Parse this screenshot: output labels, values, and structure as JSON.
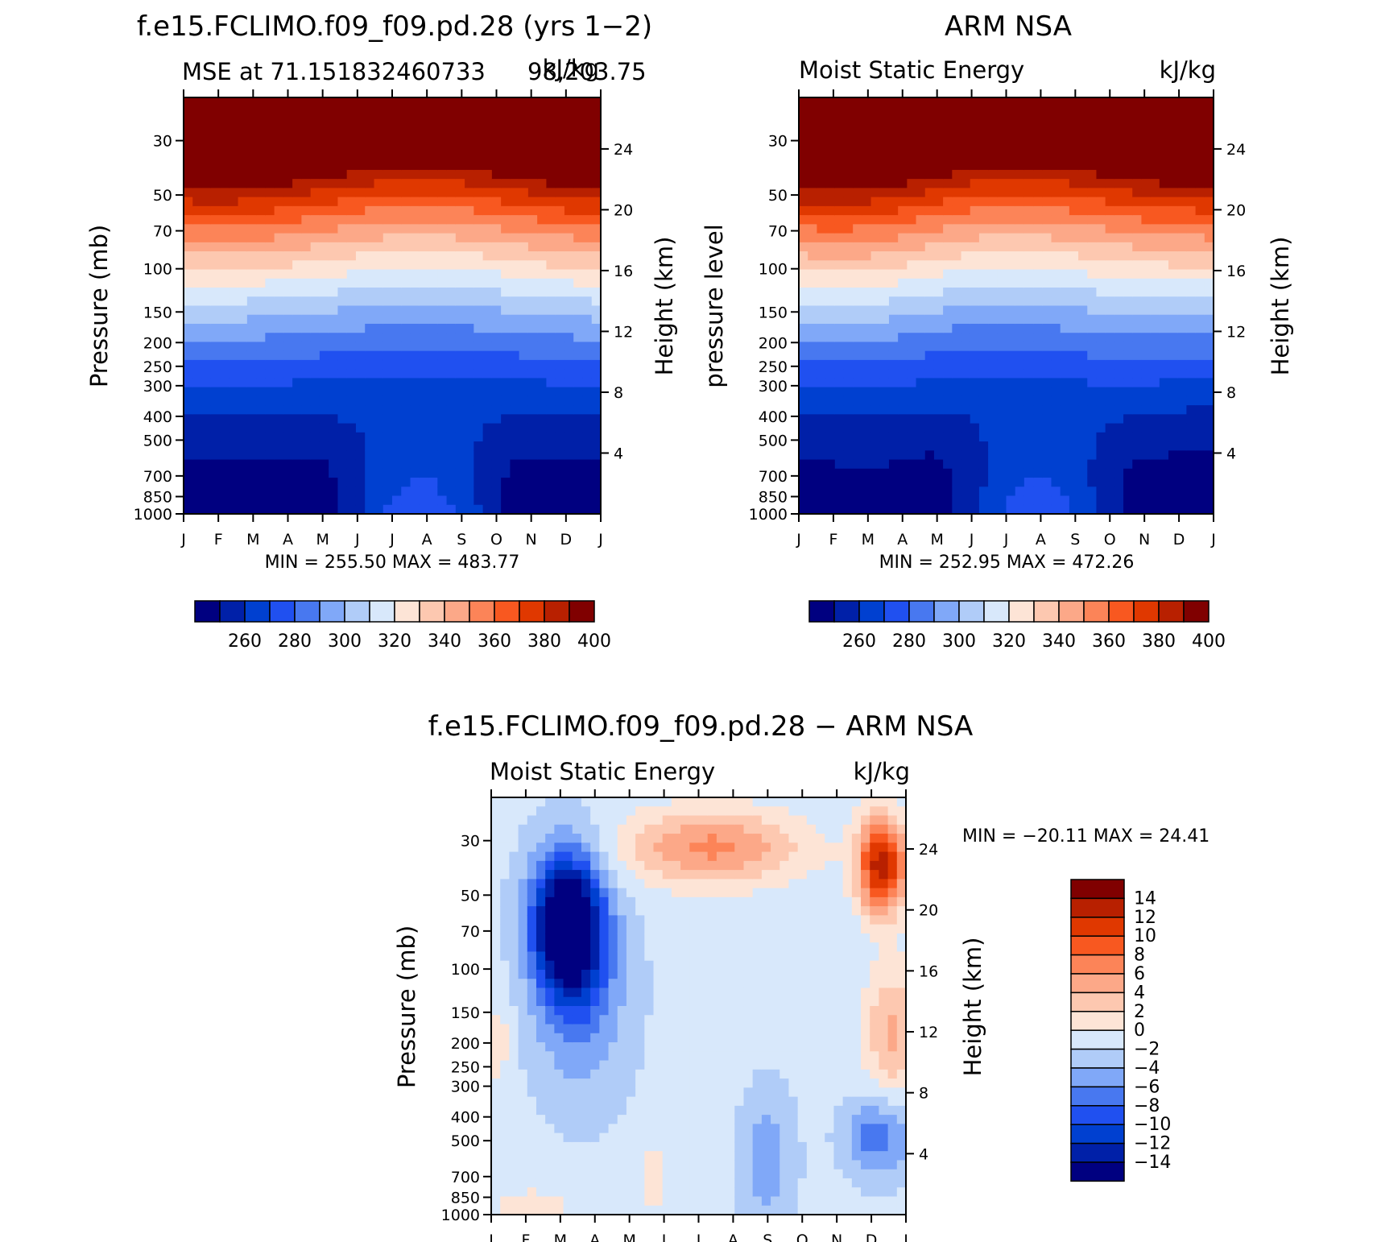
{
  "chart_data": [
    {
      "type": "contour",
      "title": "f.e15.FCLIMO.f09_f09.pd.28 (yrs 1−2)",
      "subtitle_left": "MSE at 71.151832460733",
      "subtitle_right": "98,203.75",
      "subtitle_units": "kJ/kg",
      "ylabel": "Pressure (mb)",
      "ylabel_right": "Height (km)",
      "x_ticks": [
        "J",
        "F",
        "M",
        "A",
        "M",
        "J",
        "J",
        "A",
        "S",
        "O",
        "N",
        "D",
        "J"
      ],
      "y_ticks": [
        30,
        50,
        70,
        100,
        150,
        200,
        250,
        300,
        400,
        500,
        700,
        850,
        1000
      ],
      "y_scale": "log",
      "height_ticks": [
        24,
        20,
        16,
        12,
        8,
        4
      ],
      "min_max_text": "MIN =  255.50 MAX =  483.77",
      "min": 255.5,
      "max": 483.77,
      "colorbar": {
        "orientation": "horizontal",
        "labels": [
          "260",
          "280",
          "300",
          "320",
          "340",
          "360",
          "380",
          "400"
        ],
        "colors": [
          "#000080",
          "#0020a8",
          "#0040d0",
          "#2050f0",
          "#4878f0",
          "#80a8f8",
          "#b0ccf8",
          "#d8e8fb",
          "#fde4d6",
          "#fdc8b0",
          "#fca888",
          "#fc8458",
          "#f85820",
          "#e03800",
          "#b82000",
          "#800000"
        ]
      }
    },
    {
      "type": "contour",
      "title": "ARM NSA",
      "subtitle_left": "Moist Static Energy",
      "subtitle_units": "kJ/kg",
      "ylabel": "pressure level",
      "ylabel_right": "Height (km)",
      "x_ticks": [
        "J",
        "F",
        "M",
        "A",
        "M",
        "J",
        "J",
        "A",
        "S",
        "O",
        "N",
        "D",
        "J"
      ],
      "y_ticks": [
        30,
        50,
        70,
        100,
        150,
        200,
        250,
        300,
        400,
        500,
        700,
        850,
        1000
      ],
      "y_scale": "log",
      "height_ticks": [
        24,
        20,
        16,
        12,
        8,
        4
      ],
      "min_max_text": "MIN =  252.95 MAX =  472.26",
      "min": 252.95,
      "max": 472.26,
      "colorbar": {
        "orientation": "horizontal",
        "labels": [
          "260",
          "280",
          "300",
          "320",
          "340",
          "360",
          "380",
          "400"
        ]
      }
    },
    {
      "type": "contour",
      "title": "f.e15.FCLIMO.f09_f09.pd.28 − ARM NSA",
      "subtitle_left": "Moist Static Energy",
      "subtitle_units": "kJ/kg",
      "ylabel": "Pressure (mb)",
      "ylabel_right": "Height (km)",
      "x_ticks": [
        "J",
        "F",
        "M",
        "A",
        "M",
        "J",
        "J",
        "A",
        "S",
        "O",
        "N",
        "D",
        "J"
      ],
      "y_ticks": [
        30,
        50,
        70,
        100,
        150,
        200,
        250,
        300,
        400,
        500,
        700,
        850,
        1000
      ],
      "y_scale": "log",
      "height_ticks": [
        24,
        20,
        16,
        12,
        8,
        4
      ],
      "min_max_text": "MIN = −20.11 MAX =   24.41",
      "min": -20.11,
      "max": 24.41,
      "colorbar": {
        "orientation": "vertical",
        "labels": [
          "14",
          "12",
          "10",
          "8",
          "6",
          "4",
          "2",
          "0",
          "−2",
          "−4",
          "−6",
          "−8",
          "−10",
          "−12",
          "−14"
        ],
        "colors": [
          "#800000",
          "#b82000",
          "#e03800",
          "#f85820",
          "#fc8458",
          "#fca888",
          "#fdc8b0",
          "#fde4d6",
          "#d8e8fb",
          "#b0ccf8",
          "#80a8f8",
          "#4878f0",
          "#2050f0",
          "#0040d0",
          "#0020a8",
          "#000080"
        ]
      }
    }
  ]
}
